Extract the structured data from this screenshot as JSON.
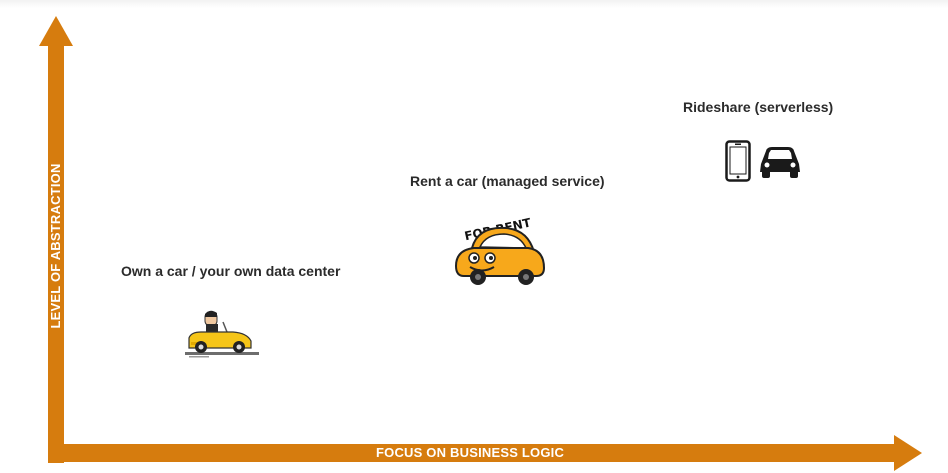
{
  "axes": {
    "y_label": "LEVEL OF ABSTRACTION",
    "x_label": "FOCUS ON BUSINESS LOGIC",
    "color": "#d67c0e"
  },
  "points": {
    "own": {
      "caption": "Own a car / your own data center",
      "icon": "driver-in-car-icon"
    },
    "rent": {
      "caption": "Rent a car (managed service)",
      "sign_text": "FOR RENT",
      "icon": "rental-car-icon"
    },
    "rideshare": {
      "caption": "Rideshare (serverless)",
      "icons": [
        "smartphone-icon",
        "car-icon"
      ]
    }
  }
}
